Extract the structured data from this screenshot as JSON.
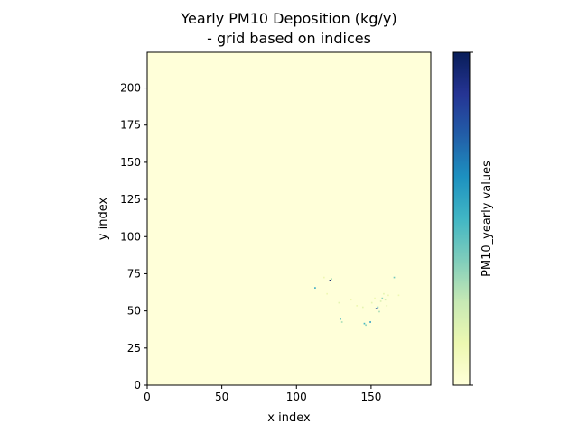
{
  "chart_data": {
    "type": "heatmap",
    "title": [
      "Yearly PM10 Deposition (kg/y)",
      "- grid based on indices"
    ],
    "xlabel": "x index",
    "ylabel": "y index",
    "xlim": [
      0,
      190
    ],
    "ylim": [
      0,
      224
    ],
    "xticks": [
      0,
      50,
      100,
      150
    ],
    "yticks": [
      0,
      25,
      50,
      75,
      100,
      125,
      150,
      175,
      200
    ],
    "colorbar": {
      "label": "PM10_yearly values",
      "colormap": "YlGnBu",
      "stops": [
        "#ffffd9",
        "#edf8b1",
        "#c7e9b4",
        "#7fcdbb",
        "#41b6c4",
        "#1d91c0",
        "#225ea8",
        "#253494",
        "#081d58"
      ]
    },
    "background_color": "#ffffd9",
    "cells": [
      {
        "x": 112,
        "y": 65,
        "level": 0.55
      },
      {
        "x": 122,
        "y": 70,
        "level": 0.95
      },
      {
        "x": 123,
        "y": 71,
        "level": 0.3
      },
      {
        "x": 118,
        "y": 72,
        "level": 0.12
      },
      {
        "x": 120,
        "y": 61,
        "level": 0.12
      },
      {
        "x": 128,
        "y": 55,
        "level": 0.15
      },
      {
        "x": 129,
        "y": 44,
        "level": 0.45
      },
      {
        "x": 130,
        "y": 42,
        "level": 0.3
      },
      {
        "x": 136,
        "y": 57,
        "level": 0.12
      },
      {
        "x": 140,
        "y": 53,
        "level": 0.12
      },
      {
        "x": 144,
        "y": 52,
        "level": 0.15
      },
      {
        "x": 145,
        "y": 41,
        "level": 0.5
      },
      {
        "x": 146,
        "y": 40,
        "level": 0.35
      },
      {
        "x": 149,
        "y": 42,
        "level": 0.6
      },
      {
        "x": 150,
        "y": 55,
        "level": 0.15
      },
      {
        "x": 152,
        "y": 58,
        "level": 0.12
      },
      {
        "x": 153,
        "y": 51,
        "level": 0.85
      },
      {
        "x": 154,
        "y": 52,
        "level": 0.5
      },
      {
        "x": 155,
        "y": 49,
        "level": 0.3
      },
      {
        "x": 156,
        "y": 56,
        "level": 0.18
      },
      {
        "x": 157,
        "y": 58,
        "level": 0.35
      },
      {
        "x": 158,
        "y": 61,
        "level": 0.15
      },
      {
        "x": 159,
        "y": 57,
        "level": 0.2
      },
      {
        "x": 160,
        "y": 53,
        "level": 0.15
      },
      {
        "x": 161,
        "y": 60,
        "level": 0.12
      },
      {
        "x": 165,
        "y": 72,
        "level": 0.4
      },
      {
        "x": 168,
        "y": 60,
        "level": 0.12
      }
    ]
  }
}
